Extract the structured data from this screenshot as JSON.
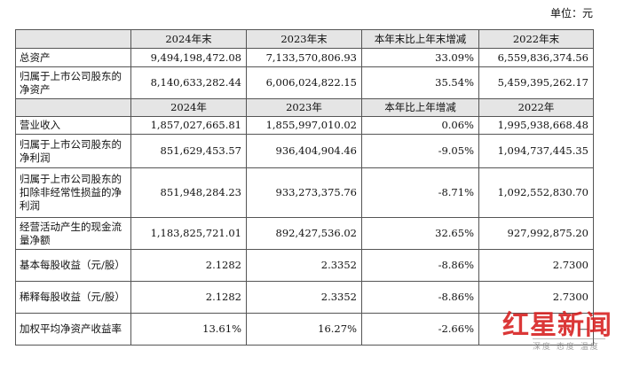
{
  "unit_label": "单位：元",
  "header_period_end": [
    "2024年末",
    "2023年末",
    "本年末比上年末增减",
    "2022年末"
  ],
  "balance_rows": [
    {
      "label": "总资产",
      "v2024": "9,494,198,472.08",
      "v2023": "7,133,570,806.93",
      "change": "33.09%",
      "v2022": "6,559,836,374.56"
    },
    {
      "label": "归属于上市公司股东的净资产",
      "v2024": "8,140,633,282.44",
      "v2023": "6,006,024,822.15",
      "change": "35.54%",
      "v2022": "5,459,395,262.17"
    }
  ],
  "header_year": [
    "2024年",
    "2023年",
    "本年比上年增减",
    "2022年"
  ],
  "income_rows": [
    {
      "label": "营业收入",
      "v2024": "1,857,027,665.81",
      "v2023": "1,855,997,010.02",
      "change": "0.06%",
      "v2022": "1,995,938,668.48"
    },
    {
      "label": "归属于上市公司股东的净利润",
      "v2024": "851,629,453.57",
      "v2023": "936,404,904.46",
      "change": "-9.05%",
      "v2022": "1,094,737,445.35"
    },
    {
      "label": "归属于上市公司股东的扣除非经常性损益的净利润",
      "v2024": "851,948,284.23",
      "v2023": "933,273,375.76",
      "change": "-8.71%",
      "v2022": "1,092,552,830.70"
    },
    {
      "label": "经营活动产生的现金流量净额",
      "v2024": "1,183,825,721.01",
      "v2023": "892,427,536.02",
      "change": "32.65%",
      "v2022": "927,992,875.20"
    },
    {
      "label": "基本每股收益（元/股）",
      "v2024": "2.1282",
      "v2023": "2.3352",
      "change": "-8.86%",
      "v2022": "2.7300"
    },
    {
      "label": "稀释每股收益（元/股）",
      "v2024": "2.1282",
      "v2023": "2.3352",
      "change": "-8.86%",
      "v2022": "2.7300"
    },
    {
      "label": "加权平均净资产收益率",
      "v2024": "13.61%",
      "v2023": "16.27%",
      "change": "-2.66%",
      "v2022": "—"
    }
  ],
  "watermark": {
    "brand": "红星新闻",
    "tagline": "深度 态度 温度"
  }
}
